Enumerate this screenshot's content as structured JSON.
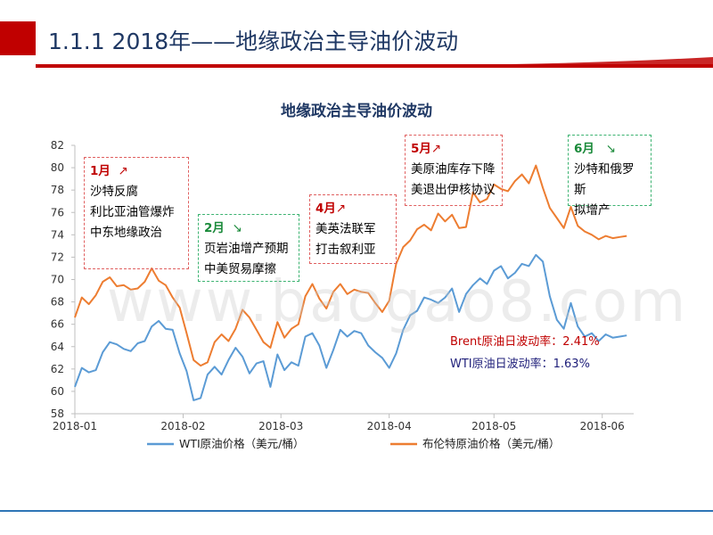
{
  "header": {
    "title": "1.1.1 2018年——地缘政治主导油价波动"
  },
  "chart_data": {
    "type": "line",
    "title": "地缘政治主导油价波动",
    "xlabel": "",
    "ylabel": "",
    "ylim": [
      58,
      82
    ],
    "yticks": [
      58,
      60,
      62,
      64,
      66,
      68,
      70,
      72,
      74,
      76,
      78,
      80,
      82
    ],
    "xlim": [
      0,
      160
    ],
    "x_tick_labels": [
      {
        "label": "2018-01",
        "x": 0
      },
      {
        "label": "2018-02",
        "x": 31
      },
      {
        "label": "2018-03",
        "x": 59
      },
      {
        "label": "2018-04",
        "x": 90
      },
      {
        "label": "2018-05",
        "x": 120
      },
      {
        "label": "2018-06",
        "x": 151
      }
    ],
    "legend_position": "bottom",
    "series": [
      {
        "name": "WTI原油价格（美元/桶）",
        "color": "#5b9bd5",
        "x": [
          0,
          2,
          4,
          6,
          8,
          10,
          12,
          14,
          16,
          18,
          20,
          22,
          24,
          26,
          28,
          30,
          32,
          34,
          36,
          38,
          40,
          42,
          44,
          46,
          48,
          50,
          52,
          54,
          56,
          58,
          60,
          62,
          64,
          66,
          68,
          70,
          72,
          74,
          76,
          78,
          80,
          82,
          84,
          86,
          88,
          90,
          92,
          94,
          96,
          98,
          100,
          102,
          104,
          106,
          108,
          110,
          112,
          114,
          116,
          118,
          120,
          122,
          124,
          126,
          128,
          130,
          132,
          134,
          136,
          138,
          140,
          142,
          144,
          146,
          148,
          150,
          152,
          154,
          156,
          158
        ],
        "values": [
          60.4,
          62.1,
          61.7,
          61.9,
          63.5,
          64.4,
          64.2,
          63.8,
          63.6,
          64.3,
          64.5,
          65.8,
          66.3,
          65.6,
          65.5,
          63.4,
          61.8,
          59.2,
          59.4,
          61.5,
          62.2,
          61.5,
          62.8,
          63.9,
          63.1,
          61.6,
          62.5,
          62.7,
          60.4,
          63.3,
          61.9,
          62.6,
          62.3,
          64.9,
          65.2,
          64.1,
          62.1,
          63.7,
          65.5,
          64.9,
          65.4,
          65.2,
          64.1,
          63.5,
          63.0,
          62.1,
          63.4,
          65.5,
          66.8,
          67.2,
          68.4,
          68.2,
          67.9,
          68.4,
          69.2,
          67.1,
          68.7,
          69.5,
          70.1,
          69.6,
          70.8,
          71.2,
          70.1,
          70.6,
          71.4,
          71.2,
          72.2,
          71.6,
          68.5,
          66.4,
          65.6,
          67.9,
          65.8,
          64.9,
          65.2,
          64.5,
          65.1,
          64.8,
          64.9,
          65.0
        ]
      },
      {
        "name": "布伦特原油价格（美元/桶）",
        "color": "#ed7d31",
        "x": [
          0,
          2,
          4,
          6,
          8,
          10,
          12,
          14,
          16,
          18,
          20,
          22,
          24,
          26,
          28,
          30,
          32,
          34,
          36,
          38,
          40,
          42,
          44,
          46,
          48,
          50,
          52,
          54,
          56,
          58,
          60,
          62,
          64,
          66,
          68,
          70,
          72,
          74,
          76,
          78,
          80,
          82,
          84,
          86,
          88,
          90,
          92,
          94,
          96,
          98,
          100,
          102,
          104,
          106,
          108,
          110,
          112,
          114,
          116,
          118,
          120,
          122,
          124,
          126,
          128,
          130,
          132,
          134,
          136,
          138,
          140,
          142,
          144,
          146,
          148,
          150,
          152,
          154,
          156,
          158
        ],
        "values": [
          66.6,
          68.4,
          67.8,
          68.6,
          69.8,
          70.2,
          69.4,
          69.5,
          69.1,
          69.2,
          69.8,
          71.0,
          69.9,
          69.5,
          68.4,
          67.5,
          65.2,
          62.8,
          62.3,
          62.6,
          64.4,
          65.1,
          64.5,
          65.6,
          67.3,
          66.6,
          65.5,
          64.4,
          63.9,
          66.2,
          64.8,
          65.6,
          66.0,
          68.5,
          69.6,
          68.3,
          67.4,
          68.9,
          69.6,
          68.7,
          69.1,
          68.9,
          68.8,
          67.9,
          67.1,
          68.1,
          71.4,
          72.9,
          73.5,
          74.5,
          74.9,
          74.4,
          75.9,
          75.2,
          75.8,
          74.6,
          74.7,
          77.8,
          76.9,
          77.2,
          78.5,
          78.1,
          77.9,
          78.8,
          79.4,
          78.6,
          80.2,
          78.2,
          76.4,
          75.5,
          74.6,
          76.5,
          74.8,
          74.3,
          74.0,
          73.6,
          73.9,
          73.7,
          73.8,
          73.9
        ]
      }
    ]
  },
  "annotations": [
    {
      "month": "1月",
      "arrow": "↗",
      "lines": [
        "沙特反腐",
        "利比亚油管爆炸",
        "中东地缘政治"
      ]
    },
    {
      "month": "2月",
      "arrow": "↘",
      "lines": [
        "页岩油增产预期",
        "中美贸易摩擦"
      ]
    },
    {
      "month": "4月",
      "arrow": "↗",
      "lines": [
        "美英法联军",
        "打击叙利亚"
      ]
    },
    {
      "month": "5月",
      "arrow": "↗",
      "lines": [
        "美原油库存下降",
        "美退出伊核协议"
      ]
    },
    {
      "month": "6月",
      "arrow": "↘",
      "lines": [
        "沙特和俄罗斯",
        "拟增产"
      ]
    }
  ],
  "volatility": {
    "brent": "Brent原油日波动率：2.41%",
    "wti": "WTI原油日波动率：1.63%"
  },
  "colors": {
    "brand_red": "#c00000",
    "wti": "#5b9bd5",
    "brent": "#ed7d31",
    "title_navy": "#1f3864"
  },
  "watermark": "www.baogao8.com"
}
